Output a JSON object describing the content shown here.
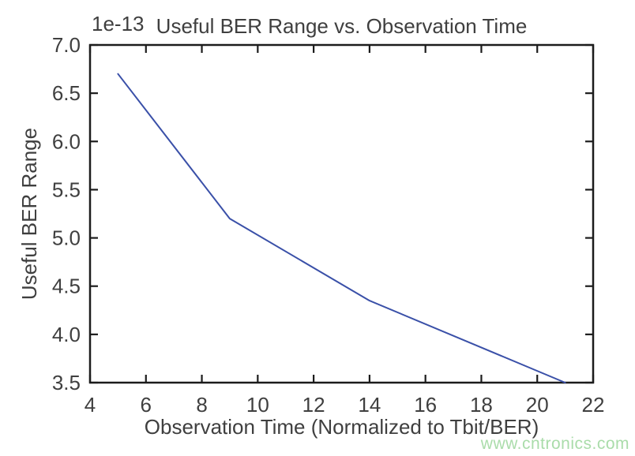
{
  "chart_data": {
    "type": "line",
    "title": "Useful BER Range vs. Observation Time",
    "xlabel": "Observation Time (Normalized to Tbit/BER)",
    "ylabel": "Useful BER Range",
    "offset_text": "1e-13",
    "x": [
      5,
      9,
      14,
      21
    ],
    "y": [
      6.7,
      5.2,
      4.35,
      3.5
    ],
    "xlim": [
      4,
      22
    ],
    "ylim": [
      3.5,
      7.0
    ],
    "xticks": [
      4,
      6,
      8,
      10,
      12,
      14,
      16,
      18,
      20,
      22
    ],
    "yticks": [
      3.5,
      4.0,
      4.5,
      5.0,
      5.5,
      6.0,
      6.5,
      7.0
    ],
    "grid": false,
    "legend_position": "none",
    "line_color": "#3a50a8",
    "axis_color": "#1c1c1c",
    "text_color": "#3f3f3f",
    "background_color": "#ffffff"
  },
  "watermark": {
    "text": "www.cntronics.com",
    "color": "#aadcaa"
  }
}
